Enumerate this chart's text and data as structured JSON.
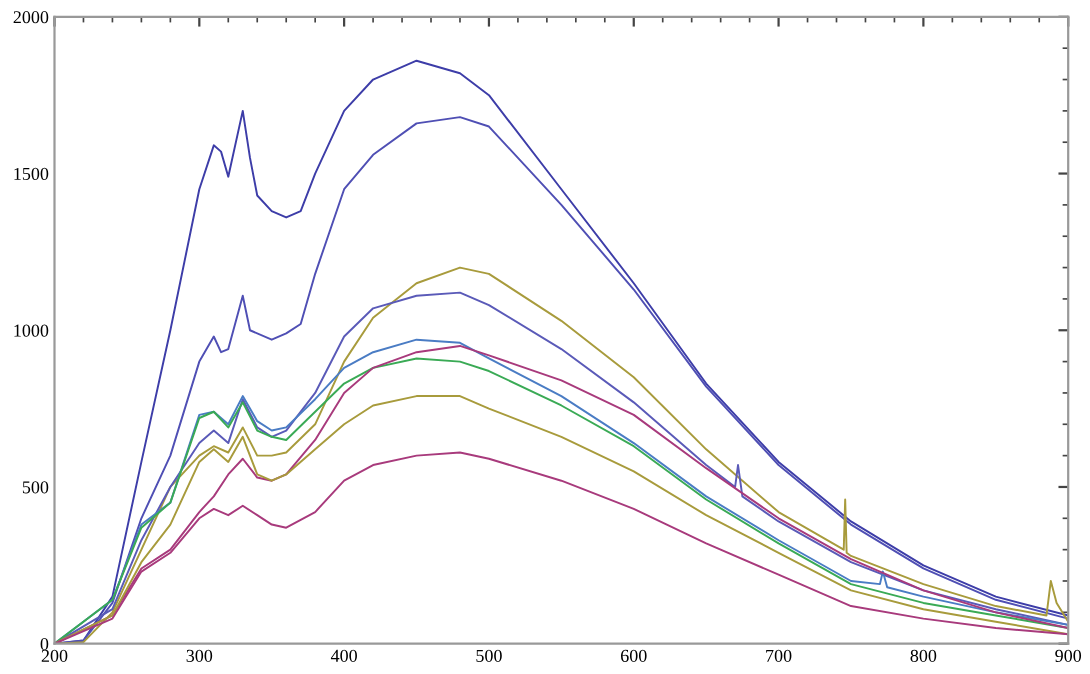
{
  "chart_data": {
    "type": "line",
    "xlim": [
      200,
      900
    ],
    "ylim": [
      0,
      2000
    ],
    "xticks": [
      200,
      300,
      400,
      500,
      600,
      700,
      800,
      900
    ],
    "yticks": [
      0,
      500,
      1000,
      1500,
      2000
    ],
    "grid": false,
    "marker": "none",
    "line_style": "solid",
    "series": [
      {
        "color": "#3d3da8",
        "x": [
          200,
          220,
          240,
          260,
          280,
          300,
          310,
          315,
          320,
          330,
          335,
          340,
          350,
          360,
          370,
          380,
          400,
          420,
          450,
          480,
          500,
          550,
          600,
          650,
          700,
          750,
          800,
          850,
          900
        ],
        "values": [
          0,
          10,
          150,
          580,
          1000,
          1450,
          1590,
          1570,
          1490,
          1700,
          1550,
          1430,
          1380,
          1360,
          1380,
          1500,
          1700,
          1800,
          1860,
          1820,
          1750,
          1450,
          1150,
          830,
          580,
          390,
          250,
          150,
          90
        ]
      },
      {
        "color": "#4f4fb4",
        "x": [
          200,
          220,
          240,
          260,
          280,
          300,
          310,
          315,
          320,
          330,
          335,
          350,
          360,
          370,
          380,
          400,
          420,
          450,
          480,
          500,
          550,
          600,
          650,
          700,
          750,
          800,
          850,
          900
        ],
        "values": [
          0,
          10,
          130,
          400,
          600,
          900,
          980,
          930,
          940,
          1110,
          1000,
          970,
          990,
          1020,
          1180,
          1450,
          1560,
          1660,
          1680,
          1650,
          1400,
          1130,
          820,
          570,
          380,
          240,
          140,
          80
        ]
      },
      {
        "color": "#a89b3c",
        "x": [
          200,
          220,
          240,
          260,
          280,
          300,
          310,
          320,
          330,
          340,
          350,
          360,
          380,
          400,
          420,
          450,
          480,
          500,
          550,
          600,
          650,
          700,
          745,
          746,
          747,
          750,
          800,
          850,
          885,
          888,
          892,
          900
        ],
        "values": [
          0,
          5,
          100,
          300,
          500,
          600,
          630,
          610,
          690,
          600,
          600,
          610,
          700,
          900,
          1040,
          1150,
          1200,
          1180,
          1030,
          850,
          620,
          420,
          300,
          460,
          290,
          280,
          190,
          120,
          90,
          200,
          130,
          70
        ]
      },
      {
        "color": "#5a5ab8",
        "x": [
          200,
          240,
          260,
          280,
          300,
          310,
          320,
          330,
          340,
          350,
          360,
          380,
          400,
          420,
          450,
          480,
          500,
          550,
          600,
          650,
          670,
          672,
          675,
          700,
          750,
          800,
          850,
          900
        ],
        "values": [
          0,
          110,
          330,
          500,
          640,
          680,
          640,
          780,
          690,
          660,
          680,
          800,
          980,
          1070,
          1110,
          1120,
          1080,
          940,
          770,
          570,
          500,
          570,
          470,
          390,
          260,
          170,
          110,
          60
        ]
      },
      {
        "color": "#4a7cc4",
        "x": [
          200,
          240,
          260,
          280,
          300,
          310,
          320,
          330,
          340,
          350,
          360,
          380,
          400,
          420,
          450,
          480,
          500,
          550,
          600,
          650,
          700,
          750,
          770,
          772,
          775,
          800,
          850,
          900
        ],
        "values": [
          0,
          140,
          380,
          450,
          730,
          740,
          700,
          790,
          710,
          680,
          690,
          780,
          880,
          930,
          970,
          960,
          910,
          790,
          640,
          470,
          330,
          200,
          190,
          230,
          180,
          150,
          100,
          60
        ]
      },
      {
        "color": "#3aaa55",
        "x": [
          200,
          240,
          260,
          280,
          300,
          310,
          320,
          330,
          340,
          350,
          360,
          380,
          400,
          420,
          450,
          480,
          500,
          550,
          600,
          650,
          700,
          750,
          800,
          850,
          900
        ],
        "values": [
          0,
          140,
          370,
          450,
          720,
          740,
          690,
          770,
          680,
          660,
          650,
          740,
          830,
          880,
          910,
          900,
          870,
          760,
          630,
          460,
          320,
          190,
          130,
          90,
          50
        ]
      },
      {
        "color": "#a83a7c",
        "x": [
          200,
          240,
          260,
          280,
          300,
          310,
          320,
          330,
          340,
          350,
          360,
          380,
          400,
          420,
          450,
          480,
          500,
          550,
          600,
          650,
          700,
          750,
          800,
          850,
          900
        ],
        "values": [
          0,
          90,
          240,
          300,
          420,
          470,
          540,
          590,
          530,
          520,
          540,
          650,
          800,
          880,
          930,
          950,
          920,
          840,
          730,
          560,
          400,
          270,
          170,
          100,
          50
        ]
      },
      {
        "color": "#a89b3c",
        "x": [
          200,
          240,
          260,
          280,
          300,
          310,
          320,
          330,
          340,
          350,
          360,
          380,
          400,
          420,
          450,
          480,
          500,
          550,
          600,
          650,
          700,
          750,
          800,
          850,
          900
        ],
        "values": [
          0,
          90,
          260,
          380,
          580,
          620,
          580,
          660,
          540,
          520,
          540,
          620,
          700,
          760,
          790,
          790,
          750,
          660,
          550,
          410,
          290,
          170,
          110,
          70,
          30
        ]
      },
      {
        "color": "#a83a7c",
        "x": [
          200,
          240,
          260,
          280,
          300,
          310,
          320,
          330,
          340,
          350,
          360,
          380,
          400,
          420,
          450,
          480,
          500,
          550,
          600,
          650,
          700,
          750,
          800,
          850,
          900
        ],
        "values": [
          0,
          80,
          230,
          290,
          400,
          430,
          410,
          440,
          410,
          380,
          370,
          420,
          520,
          570,
          600,
          610,
          590,
          520,
          430,
          320,
          220,
          120,
          80,
          50,
          30
        ]
      }
    ]
  }
}
